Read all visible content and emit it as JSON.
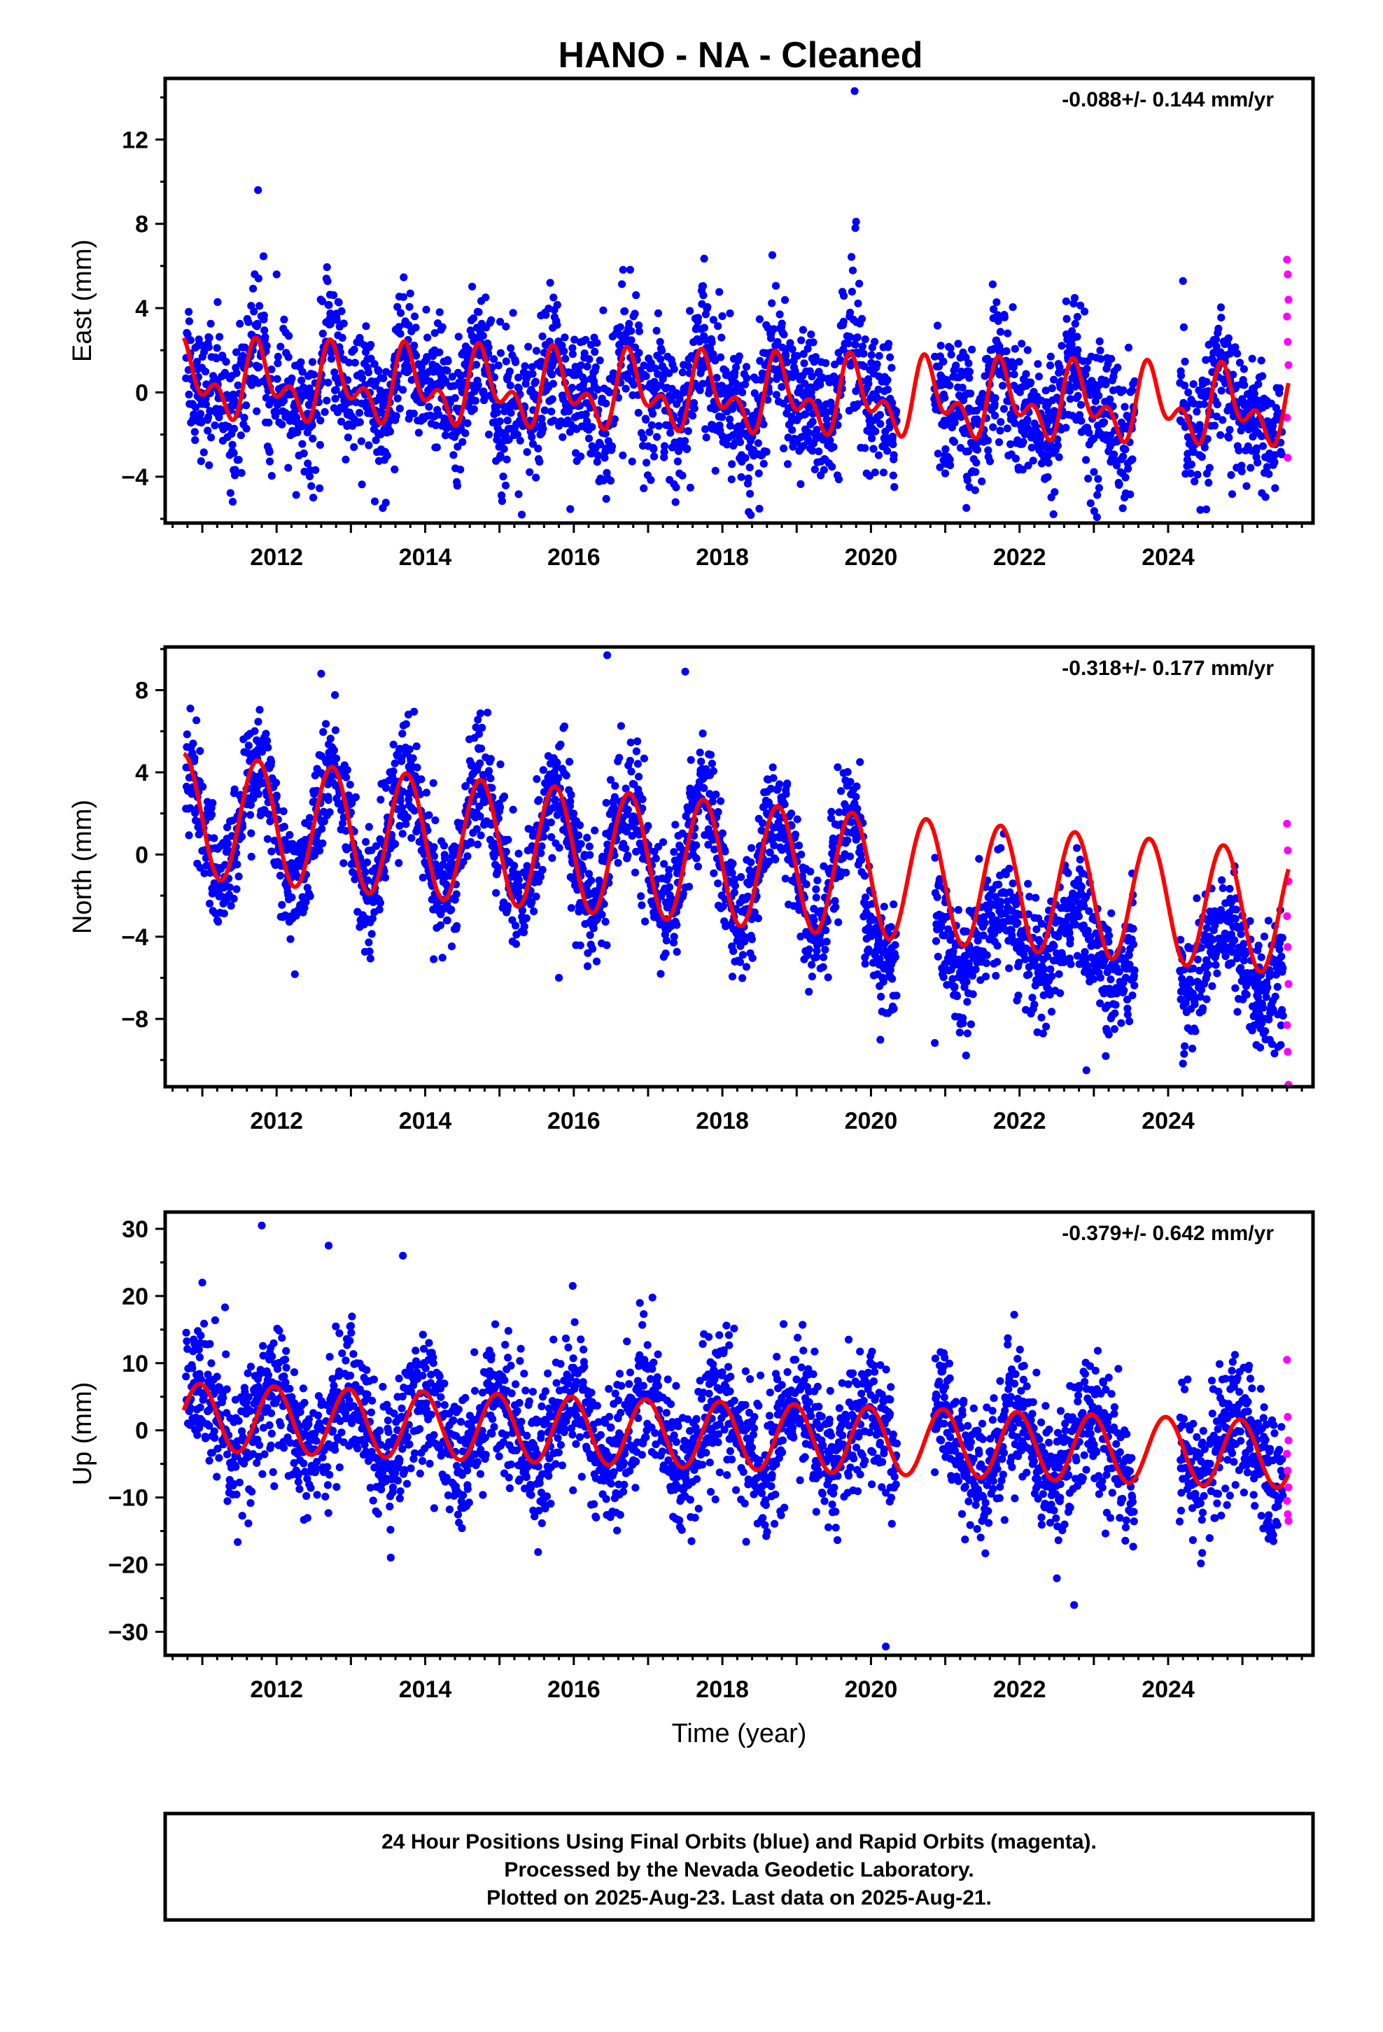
{
  "title": "HANO  - NA - Cleaned",
  "colors": {
    "final": "#0000ff",
    "rapid": "#ff00ff",
    "model": "#ff0000"
  },
  "footer": {
    "line1": "24 Hour Positions Using Final Orbits (blue) and Rapid Orbits (magenta).",
    "line2": "Processed by the Nevada Geodetic Laboratory.",
    "line3": "Plotted on 2025-Aug-23. Last data on 2025-Aug-21."
  },
  "chart_data": [
    {
      "type": "scatter",
      "component": "east",
      "ylabel": "East (mm)",
      "xlabel": "",
      "rate": "-0.088+/- 0.144 mm/yr",
      "xlim": [
        2010.5,
        2025.95
      ],
      "ylim": [
        -6.2,
        14.9
      ],
      "xticks": [
        2012,
        2014,
        2016,
        2018,
        2020,
        2022,
        2024
      ],
      "yticks": [
        -4,
        0,
        4,
        8,
        12
      ],
      "ytick_labels": [
        "−4",
        "0",
        "4",
        "8",
        "12"
      ],
      "model": {
        "offset": 0.5,
        "trend": -0.088,
        "annual": 1.3,
        "semiannual": 1.0,
        "semi_phase": 2.2,
        "ann_phase": 1.4
      },
      "outliers": [
        [
          2011.75,
          9.6
        ],
        [
          2019.78,
          14.3
        ],
        [
          2019.8,
          8.1
        ],
        [
          2019.79,
          7.8
        ],
        [
          2015.3,
          -5.8
        ],
        [
          2012.0,
          5.6
        ]
      ],
      "rapid_points": [
        [
          2025.6,
          6.3
        ],
        [
          2025.61,
          5.6
        ],
        [
          2025.62,
          4.4
        ],
        [
          2025.6,
          3.6
        ],
        [
          2025.61,
          2.4
        ],
        [
          2025.62,
          1.3
        ],
        [
          2025.6,
          -1.2
        ],
        [
          2025.61,
          -3.1
        ]
      ],
      "series": [
        {
          "name": "Final Orbits (blue)",
          "noise": 1.6
        },
        {
          "name": "Rapid Orbits (magenta)"
        }
      ]
    },
    {
      "type": "scatter",
      "component": "north",
      "ylabel": "North (mm)",
      "xlabel": "",
      "rate": "-0.318+/- 0.177 mm/yr",
      "xlim": [
        2010.5,
        2025.95
      ],
      "ylim": [
        -11.3,
        10.1
      ],
      "xticks": [
        2012,
        2014,
        2016,
        2018,
        2020,
        2022,
        2024
      ],
      "yticks": [
        -8,
        -4,
        0,
        4,
        8
      ],
      "ytick_labels": [
        "−8",
        "−4",
        "0",
        "4",
        "8"
      ],
      "model": {
        "offset": 1.9,
        "trend": -0.318,
        "annual": 3.0,
        "semiannual": 0.0,
        "semi_phase": 0,
        "ann_phase": 1.6
      },
      "outliers": [
        [
          2016.45,
          9.7
        ],
        [
          2012.6,
          8.8
        ],
        [
          2017.5,
          8.9
        ],
        [
          2015.8,
          -6.0
        ],
        [
          2022.9,
          -10.5
        ]
      ],
      "rapid_points": [
        [
          2025.6,
          1.5
        ],
        [
          2025.61,
          0.2
        ],
        [
          2025.62,
          -1.3
        ],
        [
          2025.6,
          -3.0
        ],
        [
          2025.61,
          -4.5
        ],
        [
          2025.62,
          -6.3
        ],
        [
          2025.6,
          -8.3
        ],
        [
          2025.61,
          -9.6
        ],
        [
          2025.62,
          -11.2
        ]
      ],
      "series": [
        {
          "name": "Final Orbits (blue)",
          "noise": 1.4
        },
        {
          "name": "Rapid Orbits (magenta)"
        }
      ]
    },
    {
      "type": "scatter",
      "component": "up",
      "ylabel": "Up (mm)",
      "xlabel": "Time (year)",
      "rate": "-0.379+/- 0.642 mm/yr",
      "xlim": [
        2010.5,
        2025.95
      ],
      "ylim": [
        -33.5,
        32.5
      ],
      "xticks": [
        2012,
        2014,
        2016,
        2018,
        2020,
        2022,
        2024
      ],
      "yticks": [
        -30,
        -20,
        -10,
        0,
        10,
        20,
        30
      ],
      "ytick_labels": [
        "−30",
        "−20",
        "−10",
        "0",
        "10",
        "20",
        "30"
      ],
      "model": {
        "offset": 2.0,
        "trend": -0.379,
        "annual": 5.0,
        "semiannual": 0.0,
        "semi_phase": 0,
        "ann_phase": 0.2
      },
      "outliers": [
        [
          2011.8,
          30.5
        ],
        [
          2012.7,
          27.5
        ],
        [
          2013.7,
          26.0
        ],
        [
          2020.2,
          -32.2
        ],
        [
          2019.7,
          13.5
        ],
        [
          2011.0,
          22.0
        ]
      ],
      "rapid_points": [
        [
          2025.6,
          10.5
        ],
        [
          2025.61,
          2.0
        ],
        [
          2025.62,
          -1.5
        ],
        [
          2025.6,
          -3.5
        ],
        [
          2025.61,
          -6.0
        ],
        [
          2025.62,
          -8.5
        ],
        [
          2025.6,
          -10.5
        ],
        [
          2025.61,
          -12.5
        ],
        [
          2025.62,
          -13.5
        ]
      ],
      "series": [
        {
          "name": "Final Orbits (blue)",
          "noise": 5.0
        },
        {
          "name": "Rapid Orbits (magenta)"
        }
      ]
    }
  ]
}
